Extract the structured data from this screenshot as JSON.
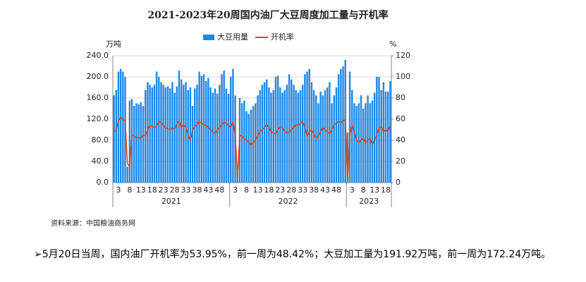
{
  "chart_data": {
    "type": "bar-line",
    "title": "2021-2023年20周国内油厂大豆周度加工量与开机率",
    "y_label": "万吨",
    "y2_label": "%",
    "groups": [
      {
        "label": "2021",
        "categories": [
          null,
          null,
          "3",
          null,
          null,
          null,
          null,
          "8",
          null,
          null,
          null,
          null,
          "13",
          null,
          null,
          null,
          null,
          "18",
          null,
          null,
          null,
          null,
          "23",
          null,
          null,
          null,
          null,
          "28",
          null,
          null,
          null,
          null,
          "33",
          null,
          null,
          null,
          null,
          "38",
          null,
          null,
          null,
          null,
          "43",
          null,
          null,
          null,
          null,
          "48",
          null,
          null,
          null,
          null
        ]
      },
      {
        "label": "2022",
        "categories": [
          null,
          null,
          "3",
          null,
          null,
          null,
          null,
          "8",
          null,
          null,
          null,
          null,
          "13",
          null,
          null,
          null,
          null,
          "18",
          null,
          null,
          null,
          null,
          "23",
          null,
          null,
          null,
          null,
          "28",
          null,
          null,
          null,
          null,
          "33",
          null,
          null,
          null,
          null,
          "38",
          null,
          null,
          null,
          null,
          "43",
          null,
          null,
          null,
          null,
          "48",
          null,
          null,
          null,
          null
        ]
      },
      {
        "label": "2023",
        "categories": [
          null,
          null,
          "3",
          null,
          null,
          null,
          null,
          "8",
          null,
          null,
          null,
          null,
          "13",
          null,
          null,
          null,
          null,
          "18",
          null,
          null
        ]
      }
    ],
    "series": [
      {
        "name": "大豆用量",
        "type": "bar",
        "color": "#1e88e5",
        "values": [
          165,
          175,
          210,
          215,
          210,
          200,
          30,
          155,
          158,
          145,
          150,
          148,
          152,
          145,
          175,
          190,
          185,
          180,
          185,
          210,
          200,
          190,
          185,
          180,
          182,
          178,
          190,
          170,
          182,
          212,
          195,
          185,
          190,
          175,
          180,
          145,
          178,
          185,
          210,
          202,
          205,
          192,
          198,
          180,
          170,
          178,
          168,
          185,
          205,
          212,
          178,
          168,
          200,
          215,
          165,
          20,
          160,
          150,
          155,
          135,
          130,
          138,
          145,
          150,
          165,
          175,
          185,
          190,
          195,
          180,
          170,
          175,
          200,
          202,
          180,
          170,
          175,
          185,
          205,
          195,
          185,
          175,
          170,
          175,
          185,
          205,
          210,
          215,
          190,
          175,
          165,
          150,
          172,
          165,
          175,
          180,
          190,
          150,
          165,
          180,
          205,
          215,
          220,
          232,
          95,
          210,
          175,
          150,
          145,
          150,
          165,
          140,
          150,
          165,
          150,
          155,
          170,
          200,
          200,
          175,
          190,
          172,
          172.24,
          191.92
        ]
      },
      {
        "name": "开机率",
        "type": "line",
        "axis": "y2",
        "color": "#d84315",
        "values": [
          48,
          50,
          58,
          62,
          60,
          58,
          18,
          15,
          45,
          44,
          42,
          43,
          42,
          45,
          44,
          50,
          54,
          53,
          52,
          53,
          58,
          57,
          54,
          52,
          51,
          50,
          52,
          50,
          56,
          58,
          52,
          55,
          52,
          45,
          40,
          50,
          53,
          55,
          58,
          56,
          55,
          54,
          52,
          50,
          48,
          46,
          50,
          52,
          55,
          57,
          56,
          54,
          52,
          58,
          45,
          5,
          45,
          44,
          42,
          40,
          38,
          35,
          38,
          40,
          45,
          48,
          50,
          52,
          55,
          52,
          48,
          47,
          46,
          50,
          53,
          52,
          48,
          47,
          48,
          50,
          52,
          55,
          54,
          56,
          58,
          52,
          44,
          48,
          50,
          46,
          42,
          44,
          48,
          52,
          50,
          48,
          46,
          50,
          55,
          56,
          58,
          57,
          58,
          60,
          2,
          45,
          55,
          48,
          40,
          38,
          40,
          42,
          38,
          40,
          42,
          36,
          40,
          45,
          52,
          53,
          48,
          50,
          48.42,
          53.95
        ]
      }
    ],
    "ylim": [
      0,
      240
    ],
    "yticks": [
      {
        "value": 0,
        "label": "0.0"
      },
      {
        "value": 40,
        "label": "40.0"
      },
      {
        "value": 80,
        "label": "80.0"
      },
      {
        "value": 120,
        "label": "120.0"
      },
      {
        "value": 160,
        "label": "160.0"
      },
      {
        "value": 200,
        "label": "200.0"
      },
      {
        "value": 240,
        "label": "240.0"
      }
    ],
    "y2lim": [
      0,
      120
    ],
    "y2ticks": [
      0,
      20,
      40,
      60,
      80,
      100,
      120
    ],
    "source": "资料来源：中国粮油商务网"
  },
  "note": "➢5月20日当周，国内油厂开机率为53.95%，前一周为48.42%；大豆加工量为191.92万吨，前一周为172.24万吨。"
}
